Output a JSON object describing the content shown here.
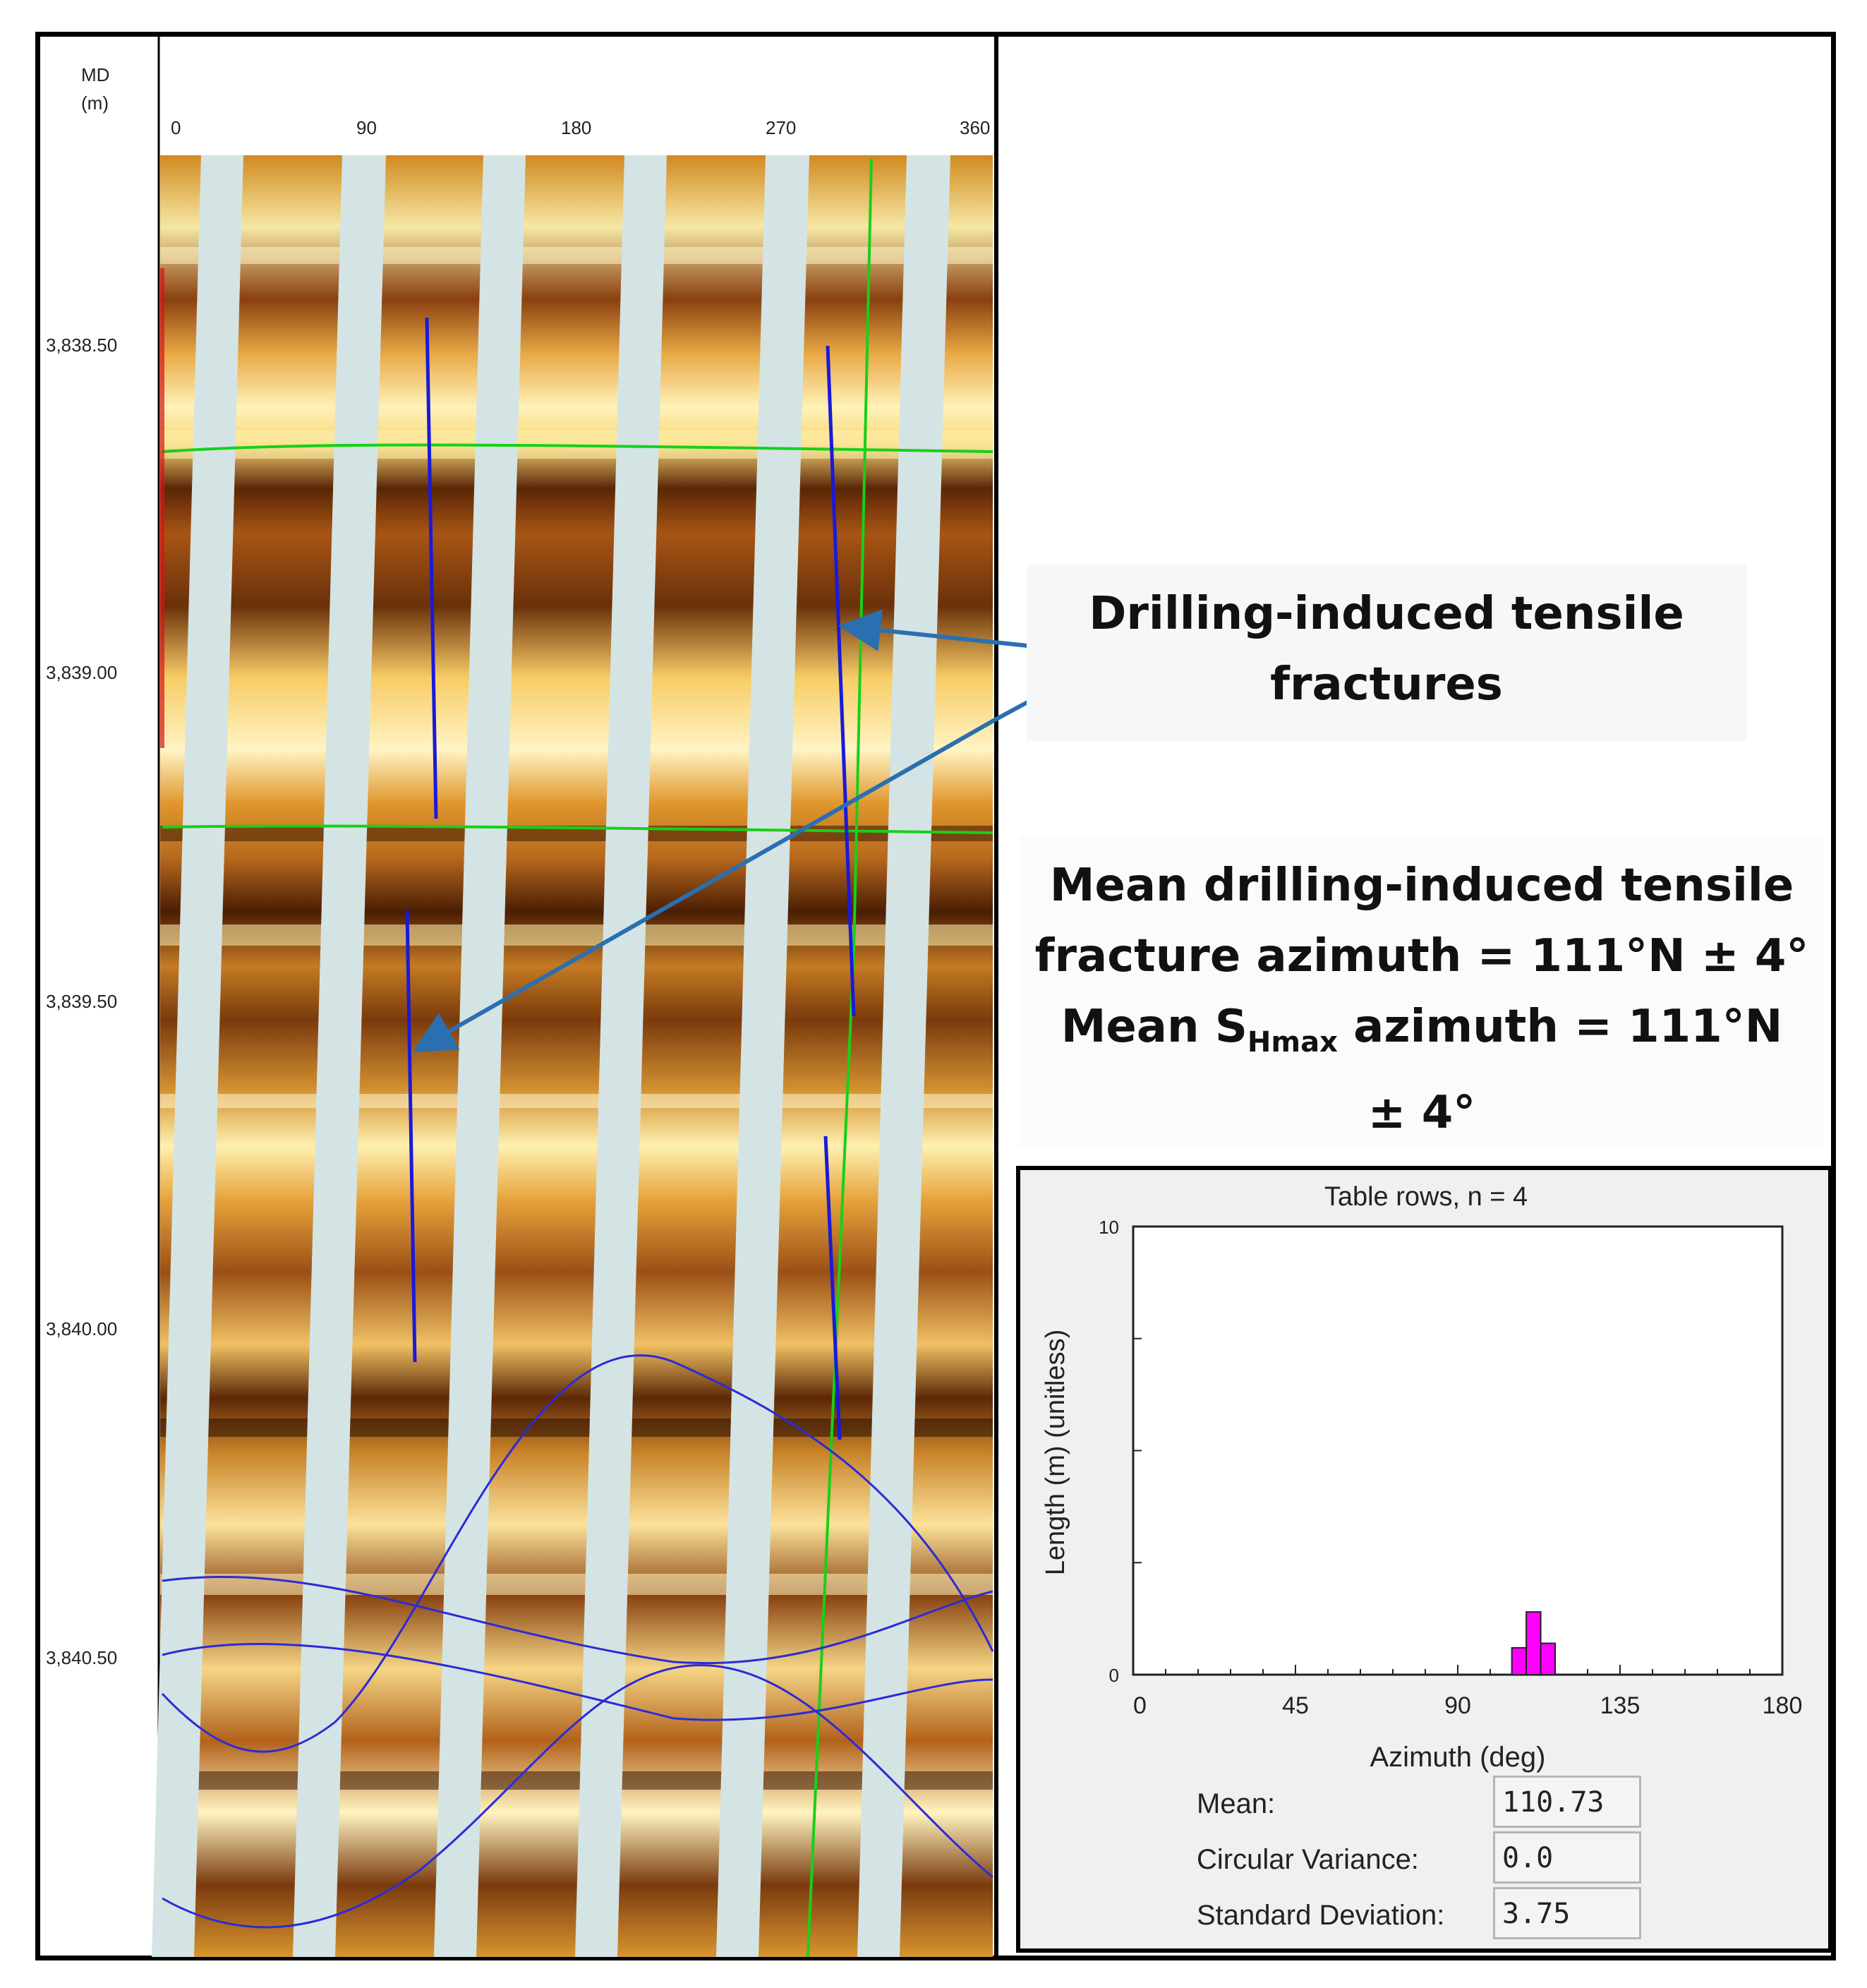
{
  "log": {
    "depth_header": [
      "MD",
      "(m)"
    ],
    "azimuth_ticks": [
      "0",
      "90",
      "180",
      "270",
      "360"
    ],
    "depth_ticks": [
      "3,838.50",
      "3,839.00",
      "3,839.50",
      "3,840.00",
      "3,840.50"
    ]
  },
  "callouts": {
    "fractures_label_lines": [
      "Drilling-induced tensile",
      "fractures"
    ],
    "mean_line_1": "Mean drilling-induced tensile",
    "mean_line_2": "fracture azimuth = 111°N ± 4°",
    "mean_line_3_pre": "Mean S",
    "mean_line_3_sub": "Hmax",
    "mean_line_3_post": " azimuth = 111°N",
    "mean_line_4": "± 4°"
  },
  "histogram": {
    "title": "Table rows, n = 4",
    "ylabel": "Length (m) (unitless)",
    "xlabel": "Azimuth (deg)",
    "xtick_labels": [
      "0",
      "45",
      "90",
      "135",
      "180"
    ],
    "ytick_labels": [
      "0",
      "10"
    ],
    "bar_color": "#ff00ff"
  },
  "stats": [
    {
      "label": "Mean:",
      "value": "110.73"
    },
    {
      "label": "Circular Variance:",
      "value": "0.0"
    },
    {
      "label": "Standard Deviation:",
      "value": "3.75"
    }
  ],
  "chart_data": {
    "type": "bar",
    "title": "Table rows, n = 4",
    "xlabel": "Azimuth (deg)",
    "ylabel": "Length (m) (unitless)",
    "xlim": [
      0,
      180
    ],
    "ylim": [
      0,
      10
    ],
    "x": [
      107,
      111,
      115
    ],
    "values": [
      0.6,
      1.4,
      0.7
    ],
    "bin_width": 4
  }
}
